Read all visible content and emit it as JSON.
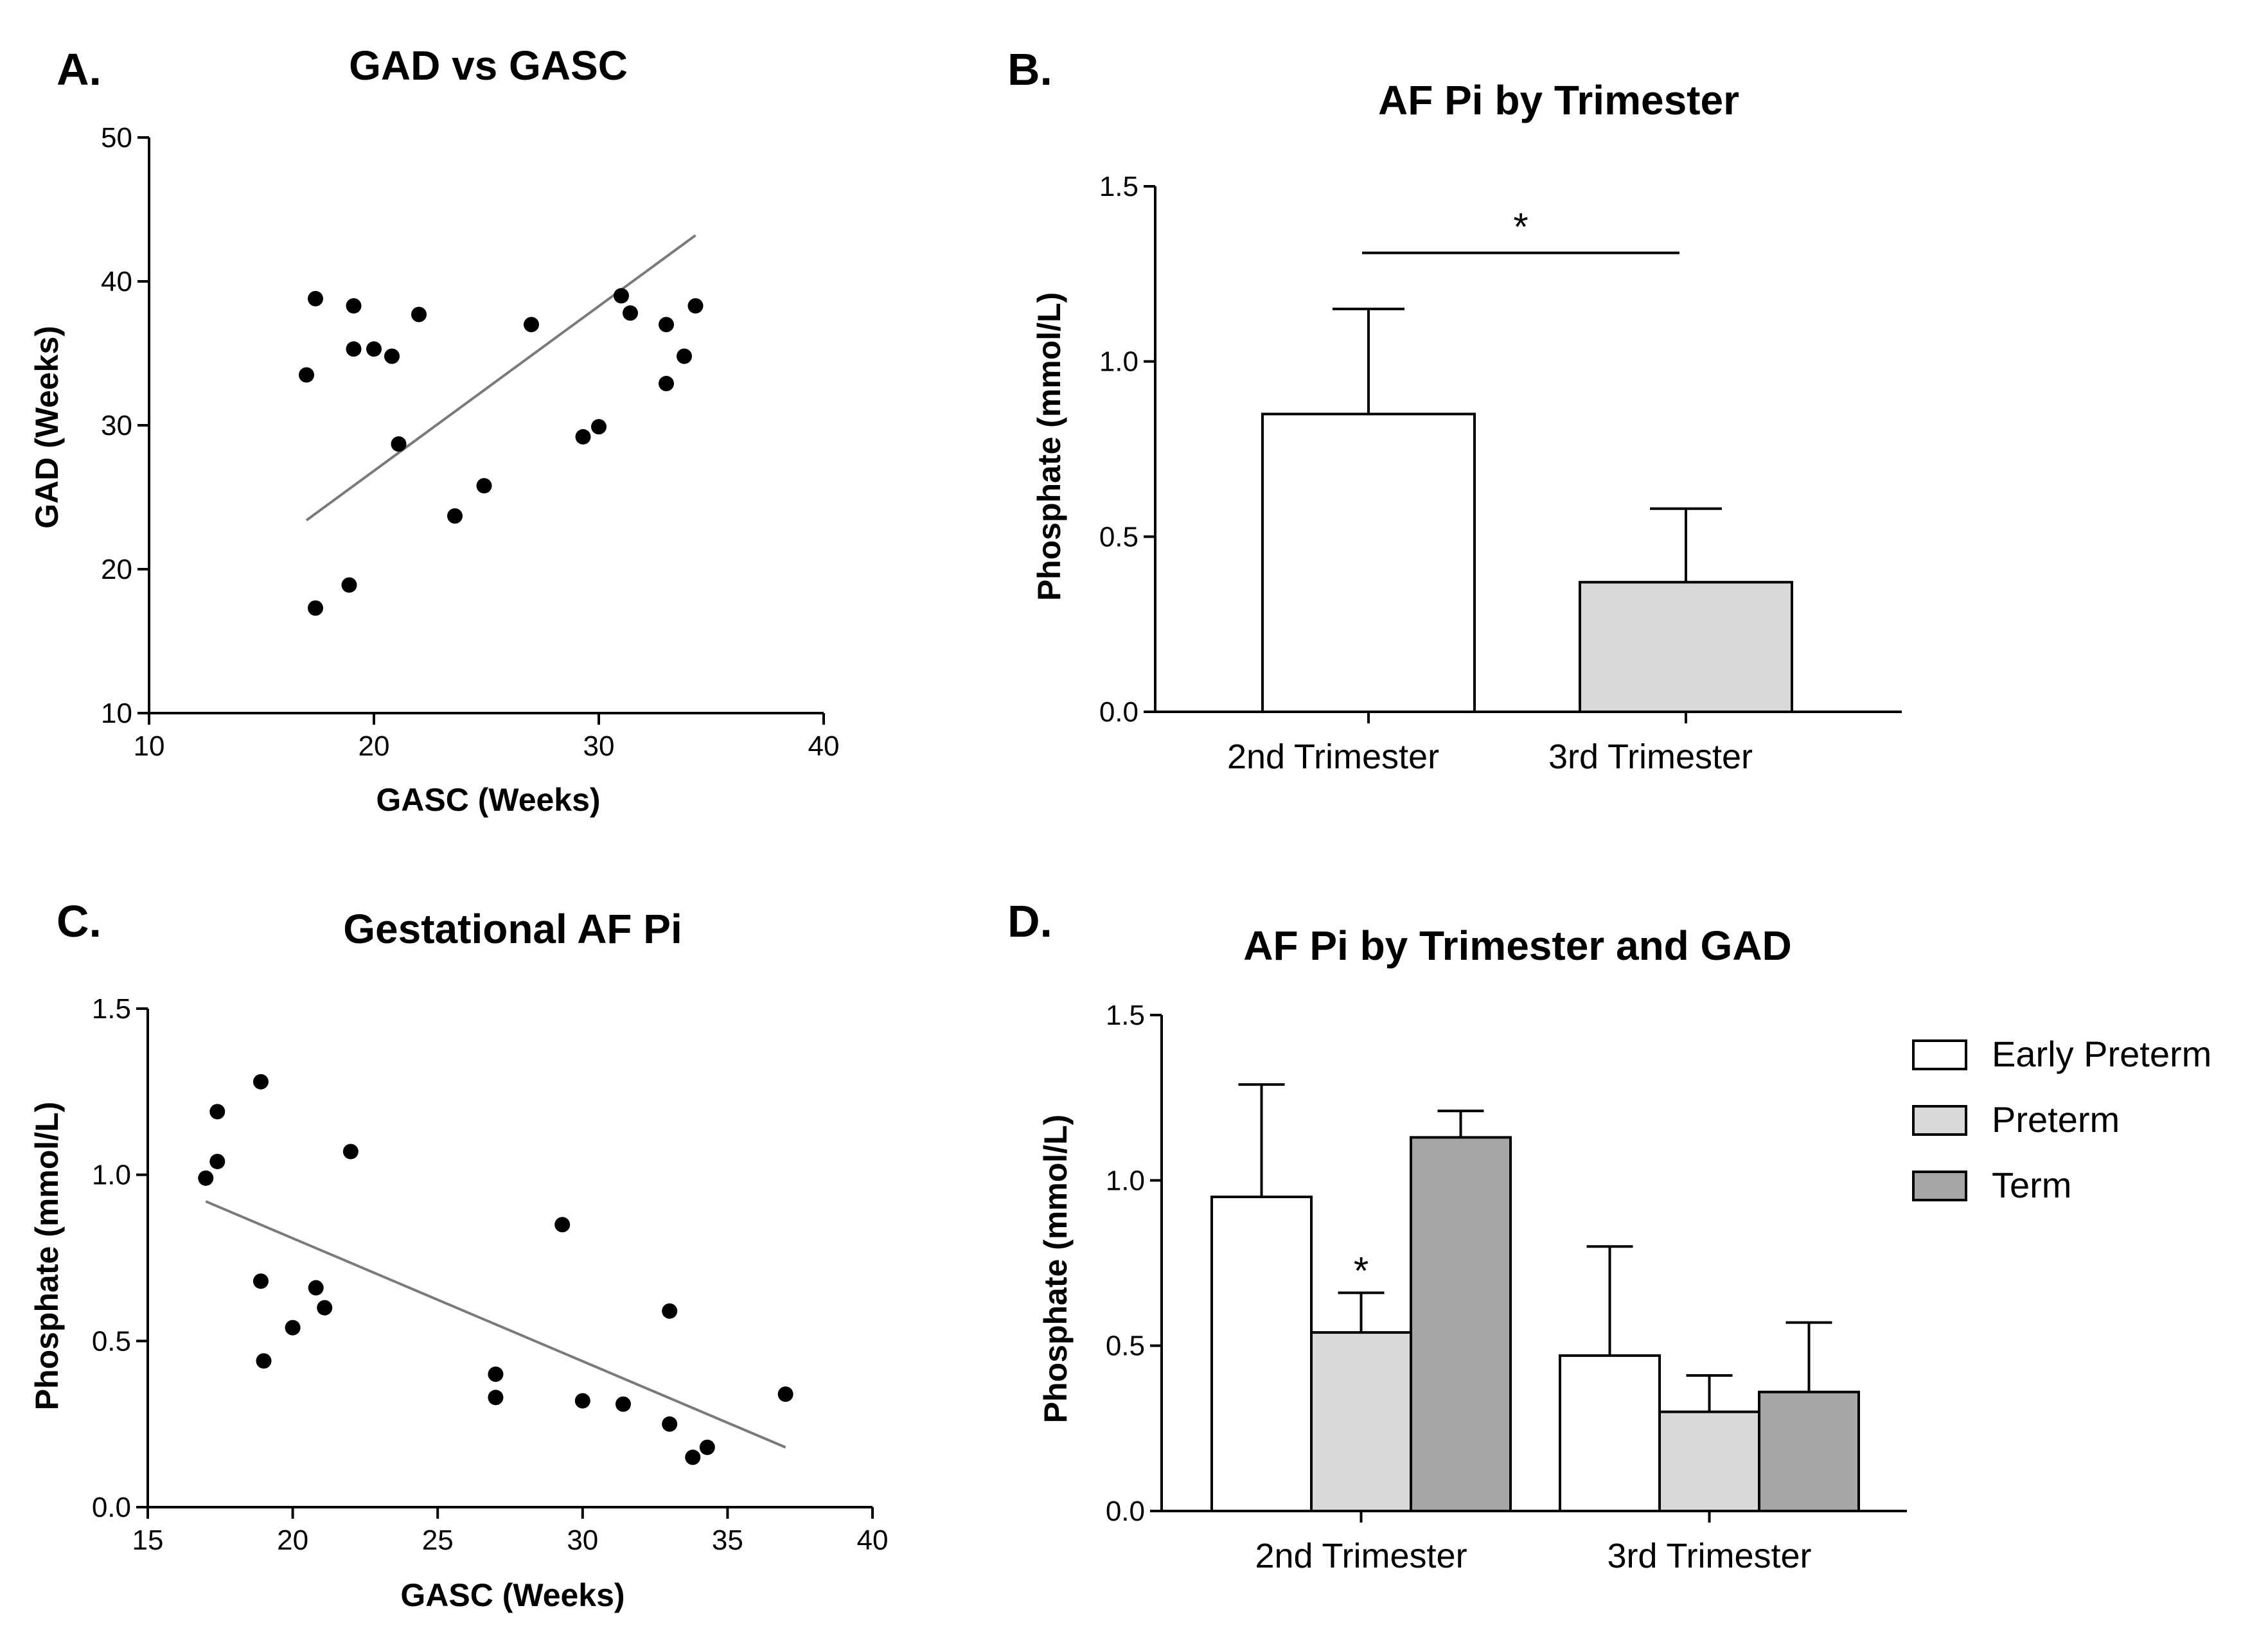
{
  "charts": [
    {
      "panel_label": "A.",
      "chart_data": {
        "type": "scatter",
        "title": "GAD vs GASC",
        "xlabel": "GASC (Weeks)",
        "ylabel": "GAD (Weeks)",
        "xlim": [
          10,
          40
        ],
        "ylim": [
          10,
          50
        ],
        "xticks": [
          10,
          20,
          30,
          40
        ],
        "yticks": [
          10,
          20,
          30,
          40,
          50
        ],
        "points": [
          {
            "x": 17.0,
            "y": 33.5
          },
          {
            "x": 17.4,
            "y": 38.8
          },
          {
            "x": 17.4,
            "y": 17.3
          },
          {
            "x": 18.9,
            "y": 18.9
          },
          {
            "x": 19.1,
            "y": 35.3
          },
          {
            "x": 19.1,
            "y": 38.3
          },
          {
            "x": 20.0,
            "y": 35.3
          },
          {
            "x": 20.8,
            "y": 34.8
          },
          {
            "x": 21.1,
            "y": 28.7
          },
          {
            "x": 22.0,
            "y": 37.7
          },
          {
            "x": 23.6,
            "y": 23.7
          },
          {
            "x": 24.9,
            "y": 25.8
          },
          {
            "x": 27.0,
            "y": 37.0
          },
          {
            "x": 29.3,
            "y": 29.2
          },
          {
            "x": 30.0,
            "y": 29.9
          },
          {
            "x": 31.0,
            "y": 39.0
          },
          {
            "x": 31.4,
            "y": 37.8
          },
          {
            "x": 33.0,
            "y": 32.9
          },
          {
            "x": 33.0,
            "y": 37.0
          },
          {
            "x": 33.8,
            "y": 34.8
          },
          {
            "x": 34.3,
            "y": 38.3
          }
        ],
        "trendline": [
          {
            "x": 17.0,
            "y": 23.4
          },
          {
            "x": 34.3,
            "y": 43.2
          }
        ],
        "grid": false
      }
    },
    {
      "panel_label": "B.",
      "chart_data": {
        "type": "bar",
        "title": "AF Pi by Trimester",
        "ylabel": "Phosphate (mmol/L)",
        "categories": [
          "2nd Trimester",
          "3rd Trimester"
        ],
        "values": [
          0.85,
          0.37
        ],
        "errors": [
          0.3,
          0.21
        ],
        "colors": [
          "#ffffff",
          "#d9d9d9"
        ],
        "ylim": [
          0,
          1.5
        ],
        "yticks": [
          "0.0",
          "0.5",
          "1.0",
          "1.5"
        ],
        "significance": {
          "label": "*",
          "between": [
            0,
            1
          ],
          "y": 1.31
        },
        "grid": false
      }
    },
    {
      "panel_label": "C.",
      "chart_data": {
        "type": "scatter",
        "title": "Gestational AF Pi",
        "xlabel": "GASC (Weeks)",
        "ylabel": "Phosphate (mmol/L)",
        "xlim": [
          15,
          40
        ],
        "ylim": [
          0,
          1.5
        ],
        "xticks": [
          "15",
          "20",
          "25",
          "30",
          "35",
          "40"
        ],
        "yticks": [
          "0.0",
          "0.5",
          "1.0",
          "1.5"
        ],
        "points": [
          {
            "x": 17.0,
            "y": 0.99
          },
          {
            "x": 17.4,
            "y": 1.19
          },
          {
            "x": 17.4,
            "y": 1.04
          },
          {
            "x": 18.9,
            "y": 1.28
          },
          {
            "x": 18.9,
            "y": 0.68
          },
          {
            "x": 19.0,
            "y": 0.44
          },
          {
            "x": 20.0,
            "y": 0.54
          },
          {
            "x": 20.8,
            "y": 0.66
          },
          {
            "x": 21.1,
            "y": 0.6
          },
          {
            "x": 22.0,
            "y": 1.07
          },
          {
            "x": 27.0,
            "y": 0.4
          },
          {
            "x": 27.0,
            "y": 0.33
          },
          {
            "x": 29.3,
            "y": 0.85
          },
          {
            "x": 30.0,
            "y": 0.32
          },
          {
            "x": 31.4,
            "y": 0.31
          },
          {
            "x": 33.0,
            "y": 0.59
          },
          {
            "x": 33.0,
            "y": 0.25
          },
          {
            "x": 33.8,
            "y": 0.15
          },
          {
            "x": 34.3,
            "y": 0.18
          },
          {
            "x": 37.0,
            "y": 0.34
          }
        ],
        "trendline": [
          {
            "x": 17.0,
            "y": 0.92
          },
          {
            "x": 37.0,
            "y": 0.18
          }
        ],
        "grid": false
      }
    },
    {
      "panel_label": "D.",
      "chart_data": {
        "type": "bar",
        "title": "AF Pi by Trimester and GAD",
        "ylabel": "Phosphate (mmol/L)",
        "categories": [
          "2nd Trimester",
          "3rd Trimester"
        ],
        "series": [
          {
            "name": "Early Preterm",
            "color": "#ffffff",
            "values": [
              0.95,
              0.47
            ],
            "errors": [
              0.34,
              0.33
            ]
          },
          {
            "name": "Preterm",
            "color": "#d9d9d9",
            "values": [
              0.54,
              0.3
            ],
            "errors": [
              0.12,
              0.11
            ]
          },
          {
            "name": "Term",
            "color": "#a6a6a9",
            "values": [
              1.13,
              0.36
            ],
            "errors": [
              0.08,
              0.21
            ]
          }
        ],
        "annotations": [
          {
            "label": "*",
            "category": 0,
            "series": 1
          }
        ],
        "ylim": [
          0,
          1.5
        ],
        "yticks": [
          "0.0",
          "0.5",
          "1.0",
          "1.5"
        ],
        "legend": "right",
        "grid": false
      }
    }
  ]
}
